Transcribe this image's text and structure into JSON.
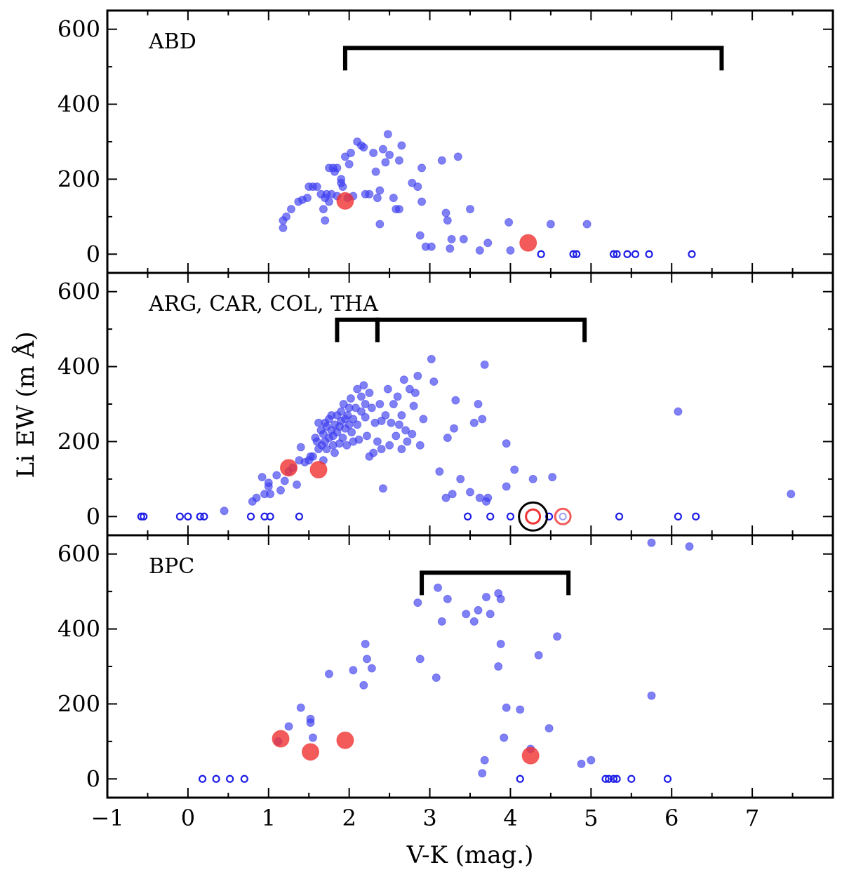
{
  "chart_data": {
    "type": "scatter",
    "xlabel": "V-K (mag.)",
    "ylabel": "Li EW (m Å)",
    "xlim": [
      -1,
      8
    ],
    "ylim": [
      -50,
      650
    ],
    "x_ticks": [
      -1,
      0,
      1,
      2,
      3,
      4,
      5,
      6,
      7
    ],
    "x_tick_labels": [
      "−1",
      "0",
      "1",
      "2",
      "3",
      "4",
      "5",
      "6",
      "7"
    ],
    "y_ticks": [
      0,
      200,
      400,
      600
    ],
    "y_tick_labels": [
      "0",
      "200",
      "400",
      "600"
    ],
    "colors": {
      "field": "#3c3cf0",
      "highlight": "#f03232",
      "upper_limit": "#1e1ee6",
      "frame": "#000000"
    },
    "panels": [
      {
        "label": "ABD",
        "brackets": [
          {
            "x0": 1.95,
            "x1": 6.62,
            "y": 550
          }
        ],
        "field": [
          [
            1.18,
            70
          ],
          [
            1.18,
            90
          ],
          [
            1.22,
            100
          ],
          [
            1.28,
            120
          ],
          [
            1.37,
            140
          ],
          [
            1.42,
            145
          ],
          [
            1.48,
            150
          ],
          [
            1.5,
            180
          ],
          [
            1.55,
            180
          ],
          [
            1.6,
            180
          ],
          [
            1.65,
            160
          ],
          [
            1.68,
            120
          ],
          [
            1.7,
            150
          ],
          [
            1.7,
            90
          ],
          [
            1.72,
            160
          ],
          [
            1.75,
            230
          ],
          [
            1.75,
            140
          ],
          [
            1.78,
            160
          ],
          [
            1.8,
            230
          ],
          [
            1.82,
            220
          ],
          [
            1.85,
            155
          ],
          [
            1.85,
            230
          ],
          [
            1.9,
            190
          ],
          [
            1.9,
            200
          ],
          [
            1.92,
            180
          ],
          [
            1.95,
            260
          ],
          [
            1.98,
            150
          ],
          [
            2.0,
            240
          ],
          [
            2.02,
            270
          ],
          [
            2.05,
            155
          ],
          [
            2.1,
            300
          ],
          [
            2.15,
            290
          ],
          [
            2.18,
            285
          ],
          [
            2.2,
            160
          ],
          [
            2.25,
            160
          ],
          [
            2.3,
            270
          ],
          [
            2.33,
            220
          ],
          [
            2.35,
            150
          ],
          [
            2.38,
            170
          ],
          [
            2.38,
            80
          ],
          [
            2.42,
            280
          ],
          [
            2.45,
            245
          ],
          [
            2.48,
            320
          ],
          [
            2.5,
            265
          ],
          [
            2.55,
            150
          ],
          [
            2.58,
            120
          ],
          [
            2.62,
            120
          ],
          [
            2.62,
            250
          ],
          [
            2.65,
            290
          ],
          [
            2.78,
            190
          ],
          [
            2.85,
            180
          ],
          [
            2.88,
            50
          ],
          [
            2.9,
            230
          ],
          [
            2.9,
            140
          ],
          [
            2.95,
            20
          ],
          [
            3.02,
            20
          ],
          [
            3.15,
            250
          ],
          [
            3.2,
            110
          ],
          [
            3.22,
            90
          ],
          [
            3.25,
            15
          ],
          [
            3.27,
            40
          ],
          [
            3.35,
            260
          ],
          [
            3.42,
            40
          ],
          [
            3.5,
            120
          ],
          [
            3.62,
            10
          ],
          [
            3.72,
            30
          ],
          [
            3.98,
            85
          ],
          [
            4.0,
            10
          ],
          [
            4.5,
            80
          ],
          [
            4.95,
            80
          ]
        ],
        "highlight": [
          [
            1.95,
            142
          ],
          [
            4.22,
            30
          ]
        ],
        "upper_limits": [
          [
            4.38,
            0
          ],
          [
            4.78,
            0
          ],
          [
            4.82,
            0
          ],
          [
            5.28,
            0
          ],
          [
            5.32,
            0
          ],
          [
            5.45,
            0
          ],
          [
            5.55,
            0
          ],
          [
            5.72,
            0
          ],
          [
            6.25,
            0
          ]
        ],
        "circled": []
      },
      {
        "label": "ARG, CAR, COL, THA",
        "brackets": [
          {
            "x0": 1.85,
            "x1": 2.35,
            "y": 525
          },
          {
            "x0": 2.35,
            "x1": 4.92,
            "y": 525
          }
        ],
        "field": [
          [
            0.45,
            15
          ],
          [
            0.8,
            40
          ],
          [
            0.85,
            50
          ],
          [
            0.92,
            105
          ],
          [
            0.95,
            60
          ],
          [
            1.0,
            80
          ],
          [
            1.0,
            90
          ],
          [
            1.02,
            60
          ],
          [
            1.1,
            110
          ],
          [
            1.15,
            70
          ],
          [
            1.2,
            95
          ],
          [
            1.25,
            120
          ],
          [
            1.3,
            130
          ],
          [
            1.35,
            85
          ],
          [
            1.38,
            150
          ],
          [
            1.4,
            185
          ],
          [
            1.45,
            145
          ],
          [
            1.5,
            150
          ],
          [
            1.52,
            160
          ],
          [
            1.55,
            160
          ],
          [
            1.58,
            210
          ],
          [
            1.6,
            200
          ],
          [
            1.62,
            250
          ],
          [
            1.62,
            180
          ],
          [
            1.65,
            230
          ],
          [
            1.66,
            190
          ],
          [
            1.68,
            220
          ],
          [
            1.68,
            150
          ],
          [
            1.7,
            200
          ],
          [
            1.7,
            250
          ],
          [
            1.72,
            240
          ],
          [
            1.72,
            180
          ],
          [
            1.75,
            210
          ],
          [
            1.75,
            260
          ],
          [
            1.78,
            230
          ],
          [
            1.78,
            270
          ],
          [
            1.8,
            190
          ],
          [
            1.8,
            215
          ],
          [
            1.82,
            245
          ],
          [
            1.82,
            170
          ],
          [
            1.85,
            270
          ],
          [
            1.85,
            225
          ],
          [
            1.88,
            240
          ],
          [
            1.88,
            195
          ],
          [
            1.9,
            280
          ],
          [
            1.9,
            255
          ],
          [
            1.92,
            210
          ],
          [
            1.93,
            300
          ],
          [
            1.95,
            260
          ],
          [
            1.95,
            235
          ],
          [
            1.97,
            190
          ],
          [
            1.98,
            270
          ],
          [
            2.0,
            290
          ],
          [
            2.0,
            245
          ],
          [
            2.02,
            315
          ],
          [
            2.03,
            225
          ],
          [
            2.05,
            260
          ],
          [
            2.05,
            200
          ],
          [
            2.08,
            290
          ],
          [
            2.1,
            340
          ],
          [
            2.1,
            245
          ],
          [
            2.12,
            205
          ],
          [
            2.15,
            320
          ],
          [
            2.15,
            280
          ],
          [
            2.18,
            350
          ],
          [
            2.2,
            300
          ],
          [
            2.2,
            265
          ],
          [
            2.22,
            215
          ],
          [
            2.25,
            330
          ],
          [
            2.25,
            160
          ],
          [
            2.28,
            290
          ],
          [
            2.3,
            170
          ],
          [
            2.32,
            250
          ],
          [
            2.35,
            200
          ],
          [
            2.38,
            300
          ],
          [
            2.4,
            255
          ],
          [
            2.4,
            180
          ],
          [
            2.42,
            75
          ],
          [
            2.45,
            270
          ],
          [
            2.48,
            340
          ],
          [
            2.5,
            190
          ],
          [
            2.52,
            250
          ],
          [
            2.55,
            300
          ],
          [
            2.58,
            215
          ],
          [
            2.6,
            320
          ],
          [
            2.62,
            245
          ],
          [
            2.65,
            270
          ],
          [
            2.65,
            180
          ],
          [
            2.68,
            365
          ],
          [
            2.7,
            230
          ],
          [
            2.72,
            200
          ],
          [
            2.75,
            340
          ],
          [
            2.78,
            220
          ],
          [
            2.8,
            295
          ],
          [
            2.82,
            330
          ],
          [
            2.85,
            375
          ],
          [
            2.88,
            190
          ],
          [
            2.92,
            260
          ],
          [
            3.02,
            420
          ],
          [
            3.05,
            360
          ],
          [
            3.12,
            120
          ],
          [
            3.2,
            50
          ],
          [
            3.22,
            210
          ],
          [
            3.28,
            60
          ],
          [
            3.3,
            235
          ],
          [
            3.32,
            310
          ],
          [
            3.38,
            100
          ],
          [
            3.5,
            65
          ],
          [
            3.55,
            250
          ],
          [
            3.6,
            300
          ],
          [
            3.62,
            50
          ],
          [
            3.65,
            260
          ],
          [
            3.68,
            405
          ],
          [
            3.7,
            40
          ],
          [
            3.72,
            50
          ],
          [
            3.95,
            195
          ],
          [
            3.95,
            80
          ],
          [
            4.05,
            125
          ],
          [
            4.28,
            100
          ],
          [
            4.52,
            105
          ],
          [
            6.08,
            280
          ],
          [
            7.48,
            60
          ]
        ],
        "highlight": [
          [
            1.25,
            130
          ],
          [
            1.62,
            125
          ]
        ],
        "upper_limits": [
          [
            -0.58,
            0
          ],
          [
            -0.55,
            0
          ],
          [
            -0.1,
            0
          ],
          [
            0.0,
            0
          ],
          [
            0.15,
            0
          ],
          [
            0.2,
            0
          ],
          [
            0.78,
            0
          ],
          [
            0.95,
            0
          ],
          [
            1.02,
            0
          ],
          [
            1.38,
            0
          ],
          [
            3.47,
            0
          ],
          [
            3.75,
            0
          ],
          [
            4.0,
            0
          ],
          [
            4.48,
            0
          ],
          [
            5.35,
            0
          ],
          [
            6.08,
            0
          ],
          [
            6.3,
            0
          ]
        ],
        "circled": [
          {
            "x": 4.28,
            "y": 0,
            "ring": "black",
            "inner": "red-open"
          },
          {
            "x": 4.65,
            "y": 0,
            "ring": "red",
            "inner": "faint-open"
          }
        ]
      },
      {
        "label": "BPC",
        "brackets": [
          {
            "x0": 2.9,
            "x1": 4.72,
            "y": 550
          }
        ],
        "field": [
          [
            1.12,
            100
          ],
          [
            1.25,
            140
          ],
          [
            1.4,
            190
          ],
          [
            1.52,
            160
          ],
          [
            1.52,
            150
          ],
          [
            1.55,
            110
          ],
          [
            1.75,
            280
          ],
          [
            2.05,
            290
          ],
          [
            2.18,
            250
          ],
          [
            2.2,
            360
          ],
          [
            2.22,
            320
          ],
          [
            2.28,
            295
          ],
          [
            2.85,
            470
          ],
          [
            2.88,
            320
          ],
          [
            3.08,
            270
          ],
          [
            3.1,
            510
          ],
          [
            3.15,
            420
          ],
          [
            3.22,
            480
          ],
          [
            3.45,
            440
          ],
          [
            3.55,
            420
          ],
          [
            3.6,
            450
          ],
          [
            3.65,
            15
          ],
          [
            3.68,
            50
          ],
          [
            3.7,
            485
          ],
          [
            3.75,
            440
          ],
          [
            3.85,
            300
          ],
          [
            3.85,
            495
          ],
          [
            3.88,
            360
          ],
          [
            3.88,
            480
          ],
          [
            3.92,
            110
          ],
          [
            3.95,
            190
          ],
          [
            4.12,
            185
          ],
          [
            4.25,
            80
          ],
          [
            4.35,
            330
          ],
          [
            4.48,
            135
          ],
          [
            4.58,
            380
          ],
          [
            4.88,
            40
          ],
          [
            5.0,
            50
          ],
          [
            5.75,
            222
          ],
          [
            5.75,
            630
          ],
          [
            6.22,
            620
          ]
        ],
        "highlight": [
          [
            1.15,
            107
          ],
          [
            1.52,
            72
          ],
          [
            1.95,
            103
          ],
          [
            4.25,
            62
          ]
        ],
        "upper_limits": [
          [
            0.18,
            0
          ],
          [
            0.35,
            0
          ],
          [
            0.52,
            0
          ],
          [
            0.7,
            0
          ],
          [
            4.12,
            0
          ],
          [
            5.18,
            0
          ],
          [
            5.22,
            0
          ],
          [
            5.28,
            0
          ],
          [
            5.32,
            0
          ],
          [
            5.5,
            0
          ],
          [
            5.95,
            0
          ]
        ],
        "circled": []
      }
    ]
  }
}
